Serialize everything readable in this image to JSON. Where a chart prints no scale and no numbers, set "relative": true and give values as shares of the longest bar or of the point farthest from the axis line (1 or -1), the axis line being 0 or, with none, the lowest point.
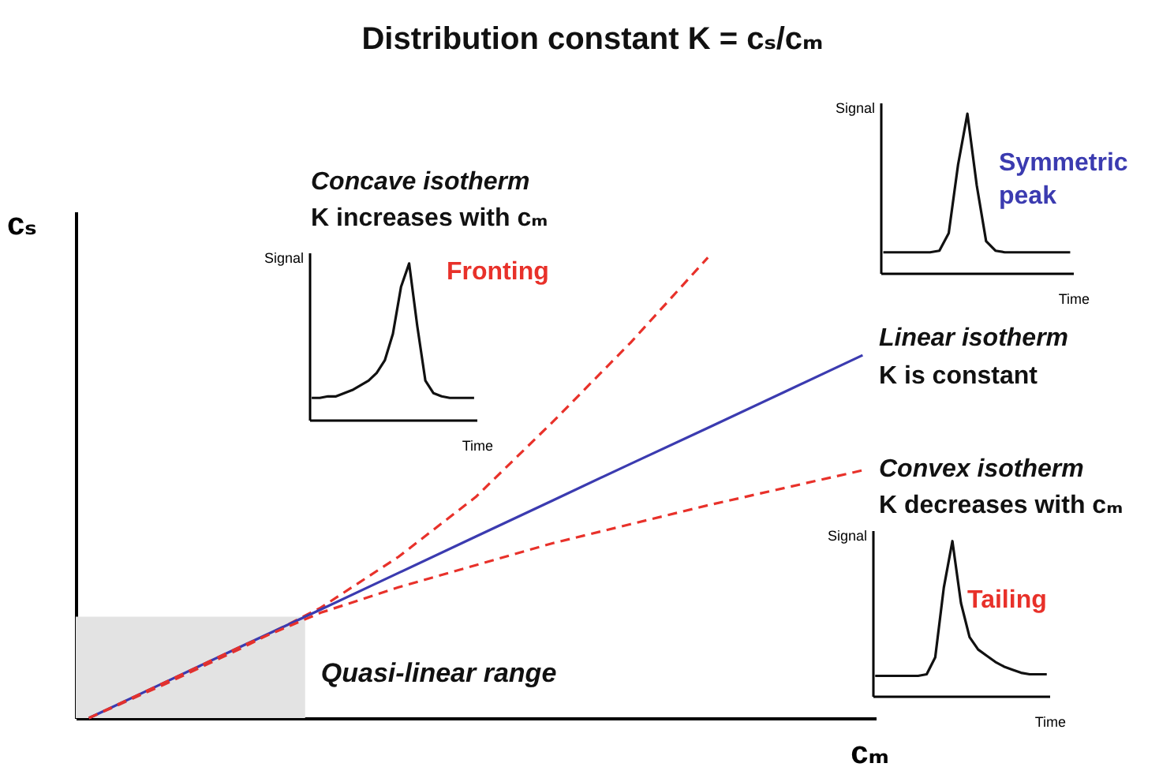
{
  "chart_data": [
    {
      "type": "line",
      "title": "Distribution constant K = cₛ/cₘ",
      "xlabel": "cₘ",
      "ylabel": "cₛ",
      "relative": true,
      "categories": [
        null,
        null,
        null,
        null,
        null,
        null,
        null,
        null,
        null,
        null,
        null
      ],
      "series": [
        {
          "color": "#e8312a",
          "line_style": "dashed",
          "values": [
            0,
            0.075,
            0.154,
            0.24,
            0.35,
            0.48,
            0.644,
            0.815,
            1,
            null,
            null
          ]
        },
        {
          "color": "#3b3bb0",
          "line_style": "solid",
          "values": [
            0,
            0.079,
            0.158,
            0.236,
            0.315,
            0.394,
            0.473,
            0.552,
            0.63,
            0.709,
            0.788
          ]
        },
        {
          "color": "#e8312a",
          "line_style": "dashed",
          "values": [
            0,
            0.079,
            0.158,
            0.229,
            0.284,
            0.332,
            0.38,
            0.421,
            0.462,
            0.5,
            0.538
          ]
        }
      ],
      "bands": [
        {
          "axis": "y",
          "from": 0,
          "to": 0.22,
          "label": "Quasi-linear range",
          "color": "#e3e3e3"
        }
      ],
      "annotations": [
        "Concave isotherm",
        "K increases with cₘ",
        "Linear isotherm",
        "K is constant",
        "Convex isotherm",
        "K decreases with cₘ"
      ]
    },
    {
      "type": "line",
      "xlabel": "Time",
      "ylabel": "Signal",
      "relative": true,
      "categories": [
        null,
        null,
        null,
        null,
        null,
        null,
        null,
        null,
        null,
        null,
        null,
        null,
        null,
        null,
        null,
        null,
        null,
        null,
        null,
        null,
        null
      ],
      "series": [
        {
          "color": "#111111",
          "values": [
            0.13,
            0.13,
            0.13,
            0.13,
            0.13,
            0.13,
            0.14,
            0.25,
            0.68,
            1,
            0.55,
            0.2,
            0.14,
            0.13,
            0.13,
            0.13,
            0.13,
            0.13,
            0.13,
            0.13,
            0.13
          ]
        }
      ],
      "annotations": [
        "Symmetric peak"
      ]
    },
    {
      "type": "line",
      "xlabel": "Time",
      "ylabel": "Signal",
      "relative": true,
      "categories": [
        null,
        null,
        null,
        null,
        null,
        null,
        null,
        null,
        null,
        null,
        null,
        null,
        null,
        null,
        null,
        null,
        null,
        null,
        null,
        null,
        null
      ],
      "series": [
        {
          "color": "#111111",
          "values": [
            0.14,
            0.14,
            0.15,
            0.15,
            0.17,
            0.19,
            0.22,
            0.25,
            0.3,
            0.38,
            0.55,
            0.85,
            1,
            0.6,
            0.25,
            0.17,
            0.15,
            0.14,
            0.14,
            0.14,
            0.14
          ]
        }
      ],
      "annotations": [
        "Fronting"
      ]
    },
    {
      "type": "line",
      "xlabel": "Time",
      "ylabel": "Signal",
      "relative": true,
      "categories": [
        null,
        null,
        null,
        null,
        null,
        null,
        null,
        null,
        null,
        null,
        null,
        null,
        null,
        null,
        null,
        null,
        null,
        null,
        null,
        null,
        null
      ],
      "series": [
        {
          "color": "#111111",
          "values": [
            0.13,
            0.13,
            0.13,
            0.13,
            0.13,
            0.13,
            0.14,
            0.25,
            0.7,
            1,
            0.6,
            0.38,
            0.3,
            0.26,
            0.22,
            0.19,
            0.17,
            0.15,
            0.14,
            0.14,
            0.14
          ]
        }
      ],
      "annotations": [
        "Tailing"
      ]
    }
  ]
}
